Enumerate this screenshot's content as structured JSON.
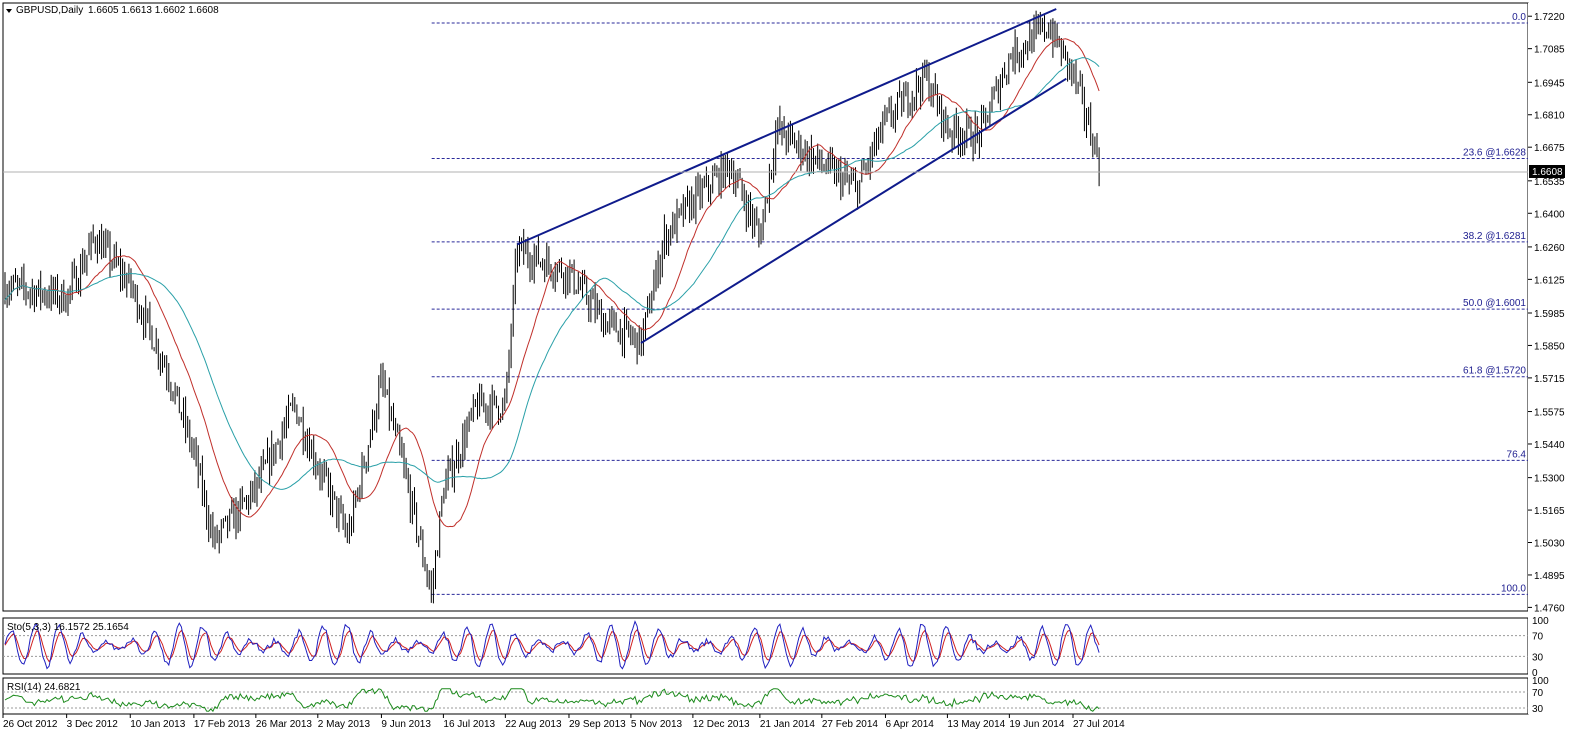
{
  "chart_data": {
    "type": "candlestick",
    "title": "GBPUSD,Daily",
    "ohlc_label": "1.6605 1.6613 1.6602 1.6608",
    "current_price": "1.6608",
    "x_ticks": [
      "26 Oct 2012",
      "3 Dec 2012",
      "10 Jan 2013",
      "17 Feb 2013",
      "26 Mar 2013",
      "2 May 2013",
      "9 Jun 2013",
      "16 Jul 2013",
      "22 Aug 2013",
      "29 Sep 2013",
      "5 Nov 2013",
      "12 Dec 2013",
      "21 Jan 2014",
      "27 Feb 2014",
      "6 Apr 2014",
      "13 May 2014",
      "19 Jun 2014",
      "27 Jul 2014"
    ],
    "y_ticks": [
      "1.7220",
      "1.7085",
      "1.6945",
      "1.6810",
      "1.6675",
      "1.6535",
      "1.6400",
      "1.6260",
      "1.6125",
      "1.5985",
      "1.5850",
      "1.5715",
      "1.5575",
      "1.5440",
      "1.5300",
      "1.5165",
      "1.5030",
      "1.4895",
      "1.4760"
    ],
    "ylim": [
      1.4745,
      1.7275
    ],
    "fibonacci_levels": [
      {
        "label": "0.0",
        "value": 1.7192
      },
      {
        "label": "23.6 @1.6628",
        "value": 1.6628
      },
      {
        "label": "38.2 @1.6281",
        "value": 1.6281
      },
      {
        "label": "50.0 @1.6001",
        "value": 1.6001
      },
      {
        "label": "61.8 @1.5720",
        "value": 1.572
      },
      {
        "label": "76.4",
        "value": 1.5372
      },
      {
        "label": "100.0",
        "value": 1.4814
      }
    ],
    "trendlines": [
      {
        "name": "channel-top",
        "points": [
          [
            "29 Aug 2013",
            1.627
          ],
          [
            "17 Jul 2014",
            1.725
          ]
        ]
      },
      {
        "name": "channel-bottom",
        "points": [
          [
            "11 Nov 2013",
            1.586
          ],
          [
            "23 Jul 2014",
            1.696
          ]
        ]
      }
    ],
    "price_path": [
      {
        "date": "26 Oct 2012",
        "close": 1.61
      },
      {
        "date": "3 Dec 2012",
        "close": 1.605
      },
      {
        "date": "20 Dec 2012",
        "close": 1.63
      },
      {
        "date": "10 Jan 2013",
        "close": 1.61
      },
      {
        "date": "1 Feb 2013",
        "close": 1.575
      },
      {
        "date": "17 Feb 2013",
        "close": 1.54
      },
      {
        "date": "1 Mar 2013",
        "close": 1.503
      },
      {
        "date": "26 Mar 2013",
        "close": 1.525
      },
      {
        "date": "18 Apr 2013",
        "close": 1.56
      },
      {
        "date": "2 May 2013",
        "close": 1.535
      },
      {
        "date": "20 May 2013",
        "close": 1.505
      },
      {
        "date": "9 Jun 2013",
        "close": 1.57
      },
      {
        "date": "20 Jun 2013",
        "close": 1.54
      },
      {
        "date": "9 Jul 2013",
        "close": 1.4814
      },
      {
        "date": "16 Jul 2013",
        "close": 1.525
      },
      {
        "date": "5 Aug 2013",
        "close": 1.56
      },
      {
        "date": "22 Aug 2013",
        "close": 1.56
      },
      {
        "date": "29 Aug 2013",
        "close": 1.625
      },
      {
        "date": "29 Sep 2013",
        "close": 1.615
      },
      {
        "date": "20 Oct 2013",
        "close": 1.595
      },
      {
        "date": "11 Nov 2013",
        "close": 1.586
      },
      {
        "date": "25 Nov 2013",
        "close": 1.63
      },
      {
        "date": "12 Dec 2013",
        "close": 1.645
      },
      {
        "date": "3 Jan 2014",
        "close": 1.66
      },
      {
        "date": "21 Jan 2014",
        "close": 1.63
      },
      {
        "date": "31 Jan 2014",
        "close": 1.675
      },
      {
        "date": "27 Feb 2014",
        "close": 1.66
      },
      {
        "date": "20 Mar 2014",
        "close": 1.65
      },
      {
        "date": "6 Apr 2014",
        "close": 1.678
      },
      {
        "date": "30 Apr 2014",
        "close": 1.697
      },
      {
        "date": "13 May 2014",
        "close": 1.675
      },
      {
        "date": "1 Jun 2014",
        "close": 1.672
      },
      {
        "date": "19 Jun 2014",
        "close": 1.705
      },
      {
        "date": "12 Jul 2014",
        "close": 1.718
      },
      {
        "date": "27 Jul 2014",
        "close": 1.698
      },
      {
        "date": "6 Aug 2014",
        "close": 1.675
      },
      {
        "date": "12 Aug 2014",
        "close": 1.6608
      }
    ],
    "indicators": {
      "stochastic": {
        "label": "Sto(5,3,3) 16.1572 25.1654",
        "y_ticks": [
          "100",
          "70",
          "30",
          "0"
        ],
        "levels": [
          70,
          30
        ]
      },
      "rsi": {
        "label": "RSI(14) 24.6821",
        "y_ticks": [
          "100",
          "70",
          "30"
        ],
        "levels": [
          70,
          30
        ]
      }
    }
  },
  "colors": {
    "background": "#ffffff",
    "candle": "#000000",
    "ma_fast": "#c0302b",
    "ma_slow": "#2aa0a8",
    "trendline": "#0f1b8c",
    "fib": "#2a2a9a",
    "stoch_main": "#2020c0",
    "stoch_signal": "#d02020",
    "rsi": "#1c8a1c"
  }
}
